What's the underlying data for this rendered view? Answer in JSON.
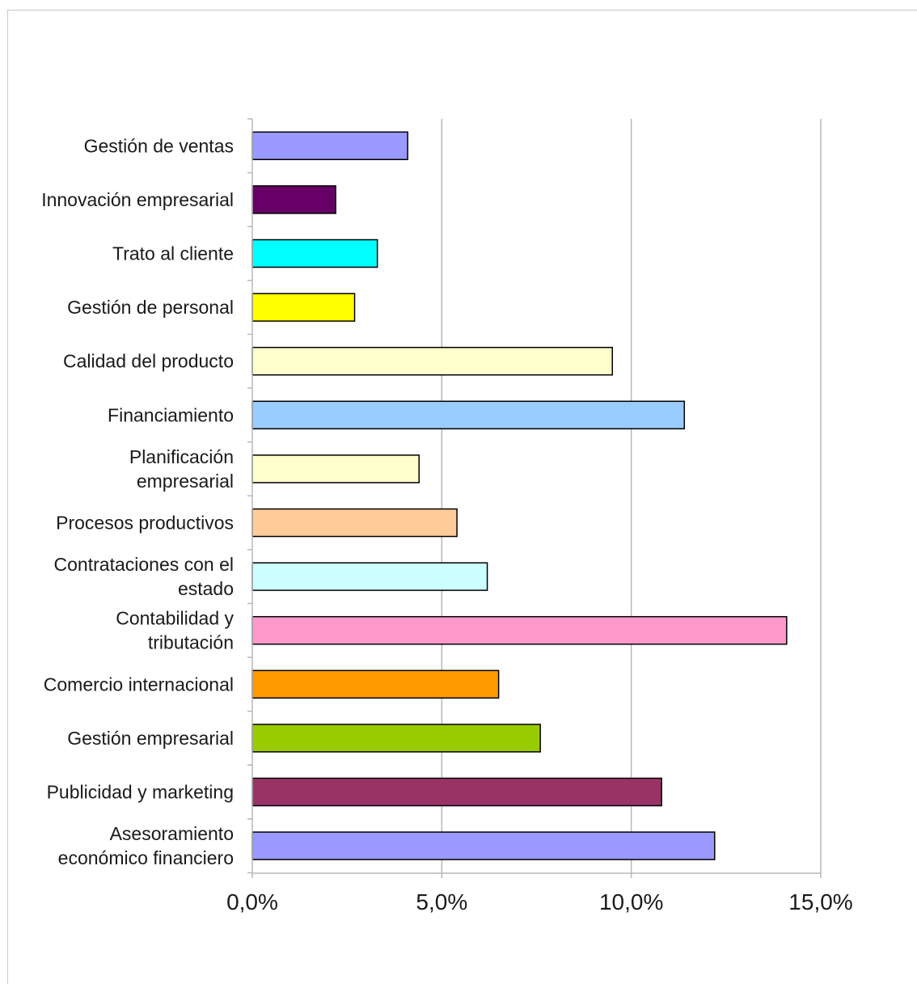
{
  "chart_data": {
    "type": "bar",
    "orientation": "horizontal",
    "title": "",
    "xlabel": "",
    "ylabel": "",
    "categories": [
      "Gestión de ventas",
      "Innovación empresarial",
      "Trato al cliente",
      "Gestión de personal",
      "Calidad del producto",
      "Financiamiento",
      "Planificación empresarial",
      "Procesos productivos",
      "Contrataciones con el estado",
      "Contabilidad y tributación",
      "Comercio internacional",
      "Gestión empresarial",
      "Publicidad y marketing",
      "Asesoramiento económico financiero"
    ],
    "category_lines": [
      [
        "Gestión de ventas"
      ],
      [
        "Innovación empresarial"
      ],
      [
        "Trato al cliente"
      ],
      [
        "Gestión de personal"
      ],
      [
        "Calidad del producto"
      ],
      [
        "Financiamiento"
      ],
      [
        "Planificación",
        "empresarial"
      ],
      [
        "Procesos productivos"
      ],
      [
        "Contrataciones con el",
        "estado"
      ],
      [
        "Contabilidad y",
        "tributación"
      ],
      [
        "Comercio internacional"
      ],
      [
        "Gestión empresarial"
      ],
      [
        "Publicidad y marketing"
      ],
      [
        "Asesoramiento",
        "económico financiero"
      ]
    ],
    "values": [
      4.1,
      2.2,
      3.3,
      2.7,
      9.5,
      11.4,
      4.4,
      5.4,
      6.2,
      14.1,
      6.5,
      7.6,
      10.8,
      12.2
    ],
    "colors": [
      "#9999ff",
      "#660066",
      "#00ffff",
      "#ffff00",
      "#ffffcc",
      "#99ccff",
      "#ffffcc",
      "#ffcc99",
      "#ccffff",
      "#ff99cc",
      "#ff9900",
      "#99cc00",
      "#993366",
      "#9999ff"
    ],
    "xlim": [
      0,
      15
    ],
    "x_ticks": [
      0,
      5,
      10,
      15
    ],
    "x_tick_labels": [
      "0,0%",
      "5,0%",
      "10,0%",
      "15,0%"
    ],
    "grid": "vertical",
    "legend": "none"
  }
}
